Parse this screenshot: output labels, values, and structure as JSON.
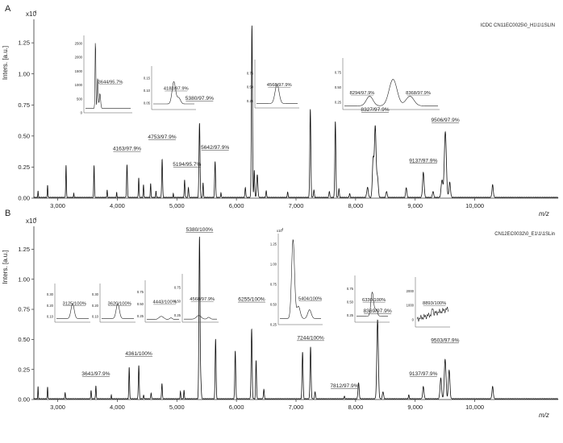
{
  "chart_data": [
    {
      "type": "line",
      "panel": "A",
      "title": "",
      "legend": "ICDC CN11EC0025\\0_H1\\1\\1SLIN",
      "xlabel": "m/z",
      "ylabel": "Inters. [a.u.]",
      "yexp": "x10",
      "yexp_sup": "4",
      "xlim": [
        2600,
        11400
      ],
      "ylim": [
        0,
        1.4
      ],
      "xticks": [
        3000,
        4000,
        5000,
        6000,
        7000,
        8000,
        9000,
        10000
      ],
      "xtick_labels": [
        "3,000",
        "4,000",
        "5,000",
        "6,000",
        "7,000",
        "8,000",
        "9,000",
        "10,000"
      ],
      "yticks": [
        0,
        0.25,
        0.5,
        0.75,
        1.0,
        1.25
      ],
      "ytick_labels": [
        "0.00",
        "0.25",
        "0.50",
        "0.75",
        "1.00",
        "1.25"
      ],
      "series": [
        {
          "name": "spectrum",
          "peaks": [
            [
              2670,
              0.05,
              6
            ],
            [
              2830,
              0.1,
              7
            ],
            [
              3140,
              0.26,
              8
            ],
            [
              3270,
              0.03,
              6
            ],
            [
              3610,
              0.26,
              8
            ],
            [
              3830,
              0.06,
              7
            ],
            [
              3990,
              0.04,
              6
            ],
            [
              4163,
              0.26,
              10
            ],
            [
              4360,
              0.16,
              8
            ],
            [
              4440,
              0.1,
              8
            ],
            [
              4560,
              0.11,
              8
            ],
            [
              4650,
              0.05,
              7
            ],
            [
              4753,
              0.31,
              10
            ],
            [
              4940,
              0.03,
              6
            ],
            [
              5130,
              0.14,
              9
            ],
            [
              5194,
              0.08,
              9
            ],
            [
              5380,
              0.6,
              12
            ],
            [
              5440,
              0.12,
              8
            ],
            [
              5642,
              0.29,
              11
            ],
            [
              5740,
              0.04,
              7
            ],
            [
              6150,
              0.08,
              10
            ],
            [
              6260,
              1.38,
              12
            ],
            [
              6300,
              0.22,
              10
            ],
            [
              6350,
              0.18,
              14
            ],
            [
              6500,
              0.05,
              10
            ],
            [
              6860,
              0.04,
              10
            ],
            [
              7240,
              0.71,
              12
            ],
            [
              7300,
              0.06,
              10
            ],
            [
              7560,
              0.05,
              10
            ],
            [
              7660,
              0.61,
              12
            ],
            [
              7720,
              0.07,
              10
            ],
            [
              7900,
              0.03,
              10
            ],
            [
              8200,
              0.08,
              18
            ],
            [
              8294,
              0.3,
              18
            ],
            [
              8330,
              0.57,
              20
            ],
            [
              8368,
              0.16,
              18
            ],
            [
              8520,
              0.05,
              14
            ],
            [
              8850,
              0.08,
              14
            ],
            [
              9137,
              0.2,
              18
            ],
            [
              9300,
              0.05,
              14
            ],
            [
              9450,
              0.14,
              20
            ],
            [
              9506,
              0.53,
              24
            ],
            [
              9580,
              0.12,
              18
            ],
            [
              10300,
              0.1,
              16
            ]
          ]
        }
      ],
      "peak_labels": [
        {
          "text": "4163/97.9%",
          "mz": 4163,
          "ytext": 0.385
        },
        {
          "text": "4753/97.9%",
          "mz": 4753,
          "ytext": 0.48
        },
        {
          "text": "5194/95.7%",
          "mz": 5170,
          "ytext": 0.26
        },
        {
          "text": "5380/97.9%",
          "mz": 5380,
          "ytext": 0.79
        },
        {
          "text": "5642/97.9%",
          "mz": 5642,
          "ytext": 0.395
        },
        {
          "text": "8327/97.9%",
          "mz": 8327,
          "ytext": 0.7
        },
        {
          "text": "9137/97.9%",
          "mz": 9137,
          "ytext": 0.29
        },
        {
          "text": "9506/97.9%",
          "mz": 9506,
          "ytext": 0.615
        }
      ],
      "insets": [
        {
          "label": "3644/95.7%",
          "yticks": [
            "0",
            "500",
            "1000",
            "1500",
            "2000",
            "2500"
          ],
          "trace": "sharp"
        },
        {
          "label": "4183/97.9%",
          "yticks": [
            "0.05",
            "0.10",
            "0.15"
          ],
          "trace": "medium"
        },
        {
          "label": "4568/97.9%",
          "yticks": [
            "0.25",
            "0.50",
            "0.75"
          ],
          "trace": "small"
        },
        {
          "label": "8294/97.9%",
          "label2": "8368/97.9%",
          "yticks": [
            "0.25",
            "0.50",
            "0.75"
          ],
          "trace": "triple"
        }
      ]
    },
    {
      "type": "line",
      "panel": "B",
      "title": "",
      "legend": "CN12EC0032\\0_E1\\1\\1SLin",
      "xlabel": "m/z",
      "ylabel": "Inters. [a.u.]",
      "yexp": "x10",
      "yexp_sup": "4",
      "xlim": [
        2600,
        11400
      ],
      "ylim": [
        0,
        1.4
      ],
      "xticks": [
        3000,
        4000,
        5000,
        6000,
        7000,
        8000,
        9000,
        10000
      ],
      "xtick_labels": [
        "3,000",
        "4,000",
        "5,000",
        "6,000",
        "7,000",
        "8,000",
        "9,000",
        "10,000"
      ],
      "yticks": [
        0,
        0.25,
        0.5,
        0.75,
        1.0,
        1.25
      ],
      "ytick_labels": [
        "0.00",
        "0.25",
        "0.50",
        "0.75",
        "1.00",
        "1.25"
      ],
      "series": [
        {
          "name": "spectrum",
          "peaks": [
            [
              2670,
              0.1,
              6
            ],
            [
              2830,
              0.1,
              7
            ],
            [
              3125,
              0.05,
              8
            ],
            [
              3560,
              0.07,
              8
            ],
            [
              3641,
              0.11,
              8
            ],
            [
              3900,
              0.03,
              6
            ],
            [
              4200,
              0.26,
              9
            ],
            [
              4361,
              0.28,
              10
            ],
            [
              4443,
              0.03,
              8
            ],
            [
              4568,
              0.05,
              8
            ],
            [
              4750,
              0.13,
              9
            ],
            [
              5060,
              0.06,
              8
            ],
            [
              5120,
              0.07,
              8
            ],
            [
              5380,
              1.35,
              13
            ],
            [
              5404,
              0.12,
              10
            ],
            [
              5650,
              0.5,
              11
            ],
            [
              5980,
              0.4,
              11
            ],
            [
              6255,
              0.58,
              12
            ],
            [
              6330,
              0.32,
              10
            ],
            [
              6460,
              0.08,
              10
            ],
            [
              7110,
              0.39,
              12
            ],
            [
              7244,
              0.43,
              12
            ],
            [
              7320,
              0.06,
              10
            ],
            [
              7812,
              0.02,
              10
            ],
            [
              8050,
              0.13,
              14
            ],
            [
              8369,
              0.66,
              18
            ],
            [
              8460,
              0.06,
              14
            ],
            [
              8893,
              0.03,
              10
            ],
            [
              9137,
              0.1,
              16
            ],
            [
              9430,
              0.17,
              18
            ],
            [
              9503,
              0.33,
              20
            ],
            [
              9570,
              0.24,
              18
            ],
            [
              10300,
              0.1,
              16
            ]
          ]
        }
      ],
      "peak_labels": [
        {
          "text": "3641/97.9%",
          "mz": 3641,
          "ytext": 0.2
        },
        {
          "text": "4361/100%",
          "mz": 4361,
          "ytext": 0.37
        },
        {
          "text": "5380/100%",
          "mz": 5380,
          "ytext": 1.4
        },
        {
          "text": "6255/100%",
          "mz": 6255,
          "ytext": 0.82
        },
        {
          "text": "7244/100%",
          "mz": 7244,
          "ytext": 0.5
        },
        {
          "text": "7812/97.9%",
          "mz": 7812,
          "ytext": 0.1
        },
        {
          "text": "8369/97.9%",
          "mz": 8369,
          "ytext": 0.725
        },
        {
          "text": "9137/97.9%",
          "mz": 9137,
          "ytext": 0.2
        },
        {
          "text": "9503/97.9%",
          "mz": 9503,
          "ytext": 0.48
        }
      ],
      "insets": [
        {
          "label": "3125/100%",
          "yticks": [
            "0.10",
            "0.20",
            "0.30"
          ],
          "trace": "small"
        },
        {
          "label": "3620/100%",
          "yticks": [
            "0.10",
            "0.20",
            "0.30"
          ],
          "trace": "small"
        },
        {
          "label": "4443/100%",
          "yticks": [
            "0.25",
            "0.50",
            "0.75"
          ],
          "trace": "flat"
        },
        {
          "label": "4568/97.9%",
          "yticks": [
            "0.25",
            "0.50",
            "0.75"
          ],
          "trace": "flat"
        },
        {
          "label": "5404/100%",
          "yticks": [
            "0.25",
            "0.50",
            "0.75",
            "1.00",
            "1.25"
          ],
          "yexp": "x10",
          "yexp_sup": "4",
          "trace": "big"
        },
        {
          "label": "6330/100%",
          "yticks": [
            "0.25",
            "0.50",
            "0.75"
          ],
          "trace": "medium"
        },
        {
          "label": "8893/100%",
          "yticks": [
            "0",
            "1000",
            "2000"
          ],
          "trace": "noisy"
        }
      ]
    }
  ]
}
